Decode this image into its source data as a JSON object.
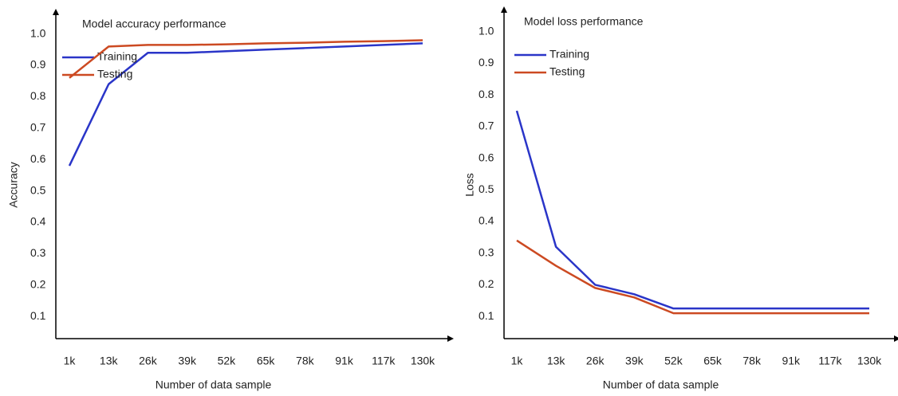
{
  "chart_data": [
    {
      "type": "line",
      "title": "Model accuracy performance",
      "x_label": "Number of data sample",
      "y_label": "Accuracy",
      "categories": [
        "1k",
        "13k",
        "26k",
        "39k",
        "52k",
        "65k",
        "78k",
        "91k",
        "117k",
        "130k"
      ],
      "series": [
        {
          "name": "Training",
          "color": "#2a35c8",
          "values": [
            0.58,
            0.84,
            0.94,
            0.94,
            0.945,
            0.95,
            0.955,
            0.96,
            0.965,
            0.97
          ]
        },
        {
          "name": "Testing",
          "color": "#cc4a22",
          "values": [
            0.86,
            0.96,
            0.965,
            0.965,
            0.967,
            0.97,
            0.972,
            0.975,
            0.977,
            0.98
          ]
        }
      ],
      "ylim": [
        0.065,
        1.07
      ],
      "yticks": [
        0.1,
        0.2,
        0.3,
        0.4,
        0.5,
        0.6,
        0.7,
        0.8,
        0.9,
        {
          "value": 1.0,
          "label": "1.0"
        }
      ],
      "legend": "upper left"
    },
    {
      "type": "line",
      "title": "Model loss performance",
      "x_label": "Number of data sample",
      "y_label": "Loss",
      "categories": [
        "1k",
        "13k",
        "26k",
        "39k",
        "52k",
        "65k",
        "78k",
        "91k",
        "117k",
        "130k"
      ],
      "series": [
        {
          "name": "Training",
          "color": "#2a35c8",
          "values": [
            0.75,
            0.32,
            0.2,
            0.17,
            0.125,
            0.125,
            0.125,
            0.125,
            0.125,
            0.125
          ]
        },
        {
          "name": "Testing",
          "color": "#cc4a22",
          "values": [
            0.34,
            0.26,
            0.19,
            0.16,
            0.11,
            0.11,
            0.11,
            0.11,
            0.11,
            0.11
          ]
        }
      ],
      "ylim": [
        0.065,
        1.07
      ],
      "yticks": [
        0.1,
        0.2,
        0.3,
        0.4,
        0.5,
        0.6,
        0.7,
        0.8,
        0.9,
        {
          "value": 1.0,
          "label": "1.0"
        }
      ],
      "legend": "upper left"
    }
  ]
}
